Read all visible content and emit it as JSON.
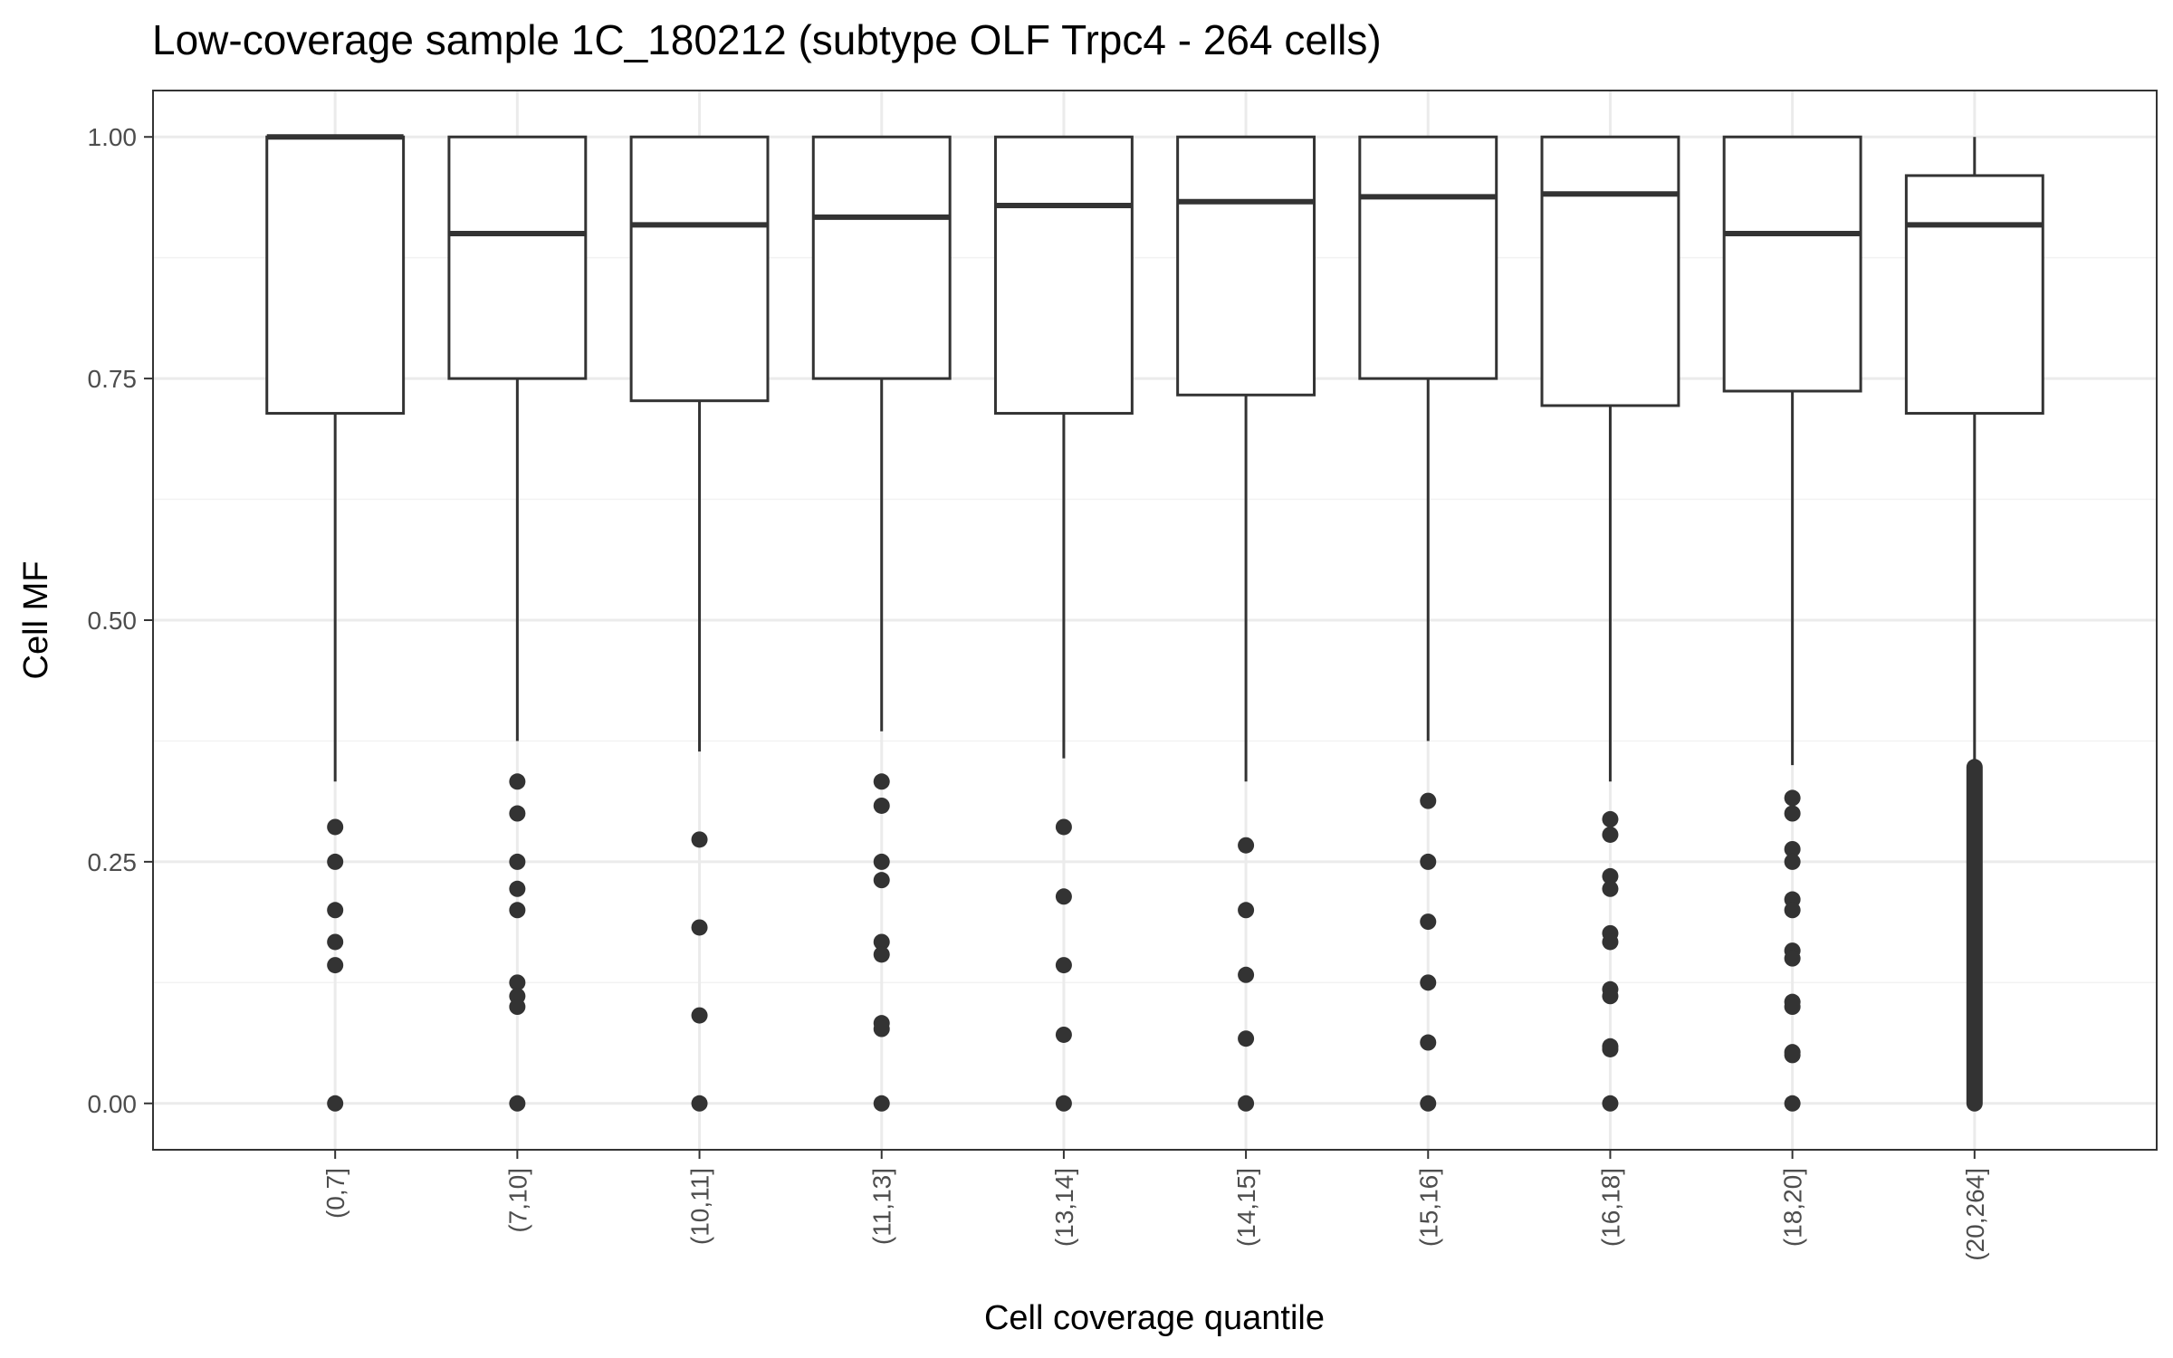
{
  "chart_data": {
    "type": "boxplot",
    "title": "Low-coverage sample 1C_180212 (subtype OLF Trpc4 - 264 cells)",
    "xlabel": "Cell coverage quantile",
    "ylabel": "Cell MF",
    "ylim": [
      -0.048,
      1.048
    ],
    "yticks": [
      0.0,
      0.25,
      0.5,
      0.75,
      1.0
    ],
    "ytick_labels": [
      "0.00",
      "0.25",
      "0.50",
      "0.75",
      "1.00"
    ],
    "grid": true,
    "categories": [
      "(0,7]",
      "(7,10]",
      "(10,11]",
      "(11,13]",
      "(13,14]",
      "(14,15]",
      "(15,16]",
      "(16,18]",
      "(18,20]",
      "(20,264]"
    ],
    "boxes": [
      {
        "label": "(0,7]",
        "lower_whisker": 0.333,
        "q1": 0.714,
        "median": 1.0,
        "q3": 1.0,
        "upper_whisker": 1.0,
        "outliers": [
          0.286,
          0.25,
          0.2,
          0.167,
          0.143,
          0.0
        ]
      },
      {
        "label": "(7,10]",
        "lower_whisker": 0.375,
        "q1": 0.75,
        "median": 0.9,
        "q3": 1.0,
        "upper_whisker": 1.0,
        "outliers": [
          0.333,
          0.3,
          0.25,
          0.222,
          0.2,
          0.125,
          0.111,
          0.1,
          0.0
        ]
      },
      {
        "label": "(10,11]",
        "lower_whisker": 0.364,
        "q1": 0.727,
        "median": 0.909,
        "q3": 1.0,
        "upper_whisker": 1.0,
        "outliers": [
          0.273,
          0.182,
          0.091,
          0.0
        ]
      },
      {
        "label": "(11,13]",
        "lower_whisker": 0.385,
        "q1": 0.75,
        "median": 0.917,
        "q3": 1.0,
        "upper_whisker": 1.0,
        "outliers": [
          0.333,
          0.308,
          0.25,
          0.231,
          0.167,
          0.154,
          0.083,
          0.077,
          0.0
        ]
      },
      {
        "label": "(13,14]",
        "lower_whisker": 0.357,
        "q1": 0.714,
        "median": 0.929,
        "q3": 1.0,
        "upper_whisker": 1.0,
        "outliers": [
          0.286,
          0.214,
          0.143,
          0.071,
          0.0
        ]
      },
      {
        "label": "(14,15]",
        "lower_whisker": 0.333,
        "q1": 0.733,
        "median": 0.933,
        "q3": 1.0,
        "upper_whisker": 1.0,
        "outliers": [
          0.267,
          0.2,
          0.133,
          0.067,
          0.0
        ]
      },
      {
        "label": "(15,16]",
        "lower_whisker": 0.375,
        "q1": 0.75,
        "median": 0.938,
        "q3": 1.0,
        "upper_whisker": 1.0,
        "outliers": [
          0.313,
          0.25,
          0.188,
          0.125,
          0.063,
          0.0
        ]
      },
      {
        "label": "(16,18]",
        "lower_whisker": 0.333,
        "q1": 0.722,
        "median": 0.941,
        "q3": 1.0,
        "upper_whisker": 1.0,
        "outliers": [
          0.294,
          0.278,
          0.235,
          0.222,
          0.176,
          0.167,
          0.118,
          0.111,
          0.059,
          0.056,
          0.0
        ]
      },
      {
        "label": "(18,20]",
        "lower_whisker": 0.35,
        "q1": 0.737,
        "median": 0.9,
        "q3": 1.0,
        "upper_whisker": 1.0,
        "outliers": [
          0.316,
          0.3,
          0.263,
          0.25,
          0.211,
          0.2,
          0.158,
          0.15,
          0.105,
          0.1,
          0.053,
          0.05,
          0.0
        ]
      },
      {
        "label": "(20,264]",
        "lower_whisker": 0.0,
        "q1": 0.714,
        "median": 0.909,
        "q3": 0.96,
        "upper_whisker": 1.0,
        "outliers_range": [
          0.0,
          0.348
        ]
      }
    ]
  }
}
